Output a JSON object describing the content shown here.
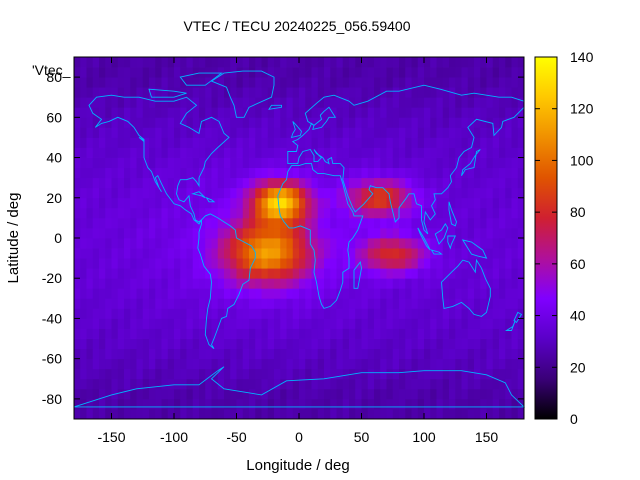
{
  "chart_data": {
    "type": "heatmap",
    "title": "VTEC / TECU 20240225_056.59400",
    "xlabel": "Longitude / deg",
    "ylabel": "Latitude / deg",
    "xlim": [
      -180,
      180
    ],
    "ylim": [
      -90,
      90
    ],
    "x_ticks": [
      -150,
      -100,
      -50,
      0,
      50,
      100,
      150
    ],
    "y_ticks": [
      -80,
      -60,
      -40,
      -20,
      0,
      20,
      40,
      60,
      80
    ],
    "colorbar": {
      "range": [
        0,
        140
      ],
      "ticks": [
        0,
        20,
        40,
        60,
        80,
        100,
        120,
        140
      ],
      "palette": [
        "#000000",
        "#3a0078",
        "#5a00c8",
        "#8000ff",
        "#b0109a",
        "#d02030",
        "#e05400",
        "#f09000",
        "#ffc800",
        "#ffff00"
      ]
    },
    "legend_entry": "'Vtec_",
    "coastline_color": "#00b4ff",
    "grid": {
      "lon_step": 5,
      "lat_step": 5
    },
    "field_peaks": [
      {
        "lon": -15,
        "lat": 18,
        "value": 120,
        "note": "northern equatorial crest, Atlantic/West Africa"
      },
      {
        "lon": -25,
        "lat": -7,
        "value": 105,
        "note": "southern equatorial crest, South Atlantic"
      },
      {
        "lon": 65,
        "lat": 20,
        "value": 85,
        "note": "Arabian Sea / India"
      },
      {
        "lon": 75,
        "lat": -8,
        "value": 80,
        "note": "Indian Ocean"
      }
    ],
    "background_value": 35,
    "polar_value": 25
  }
}
